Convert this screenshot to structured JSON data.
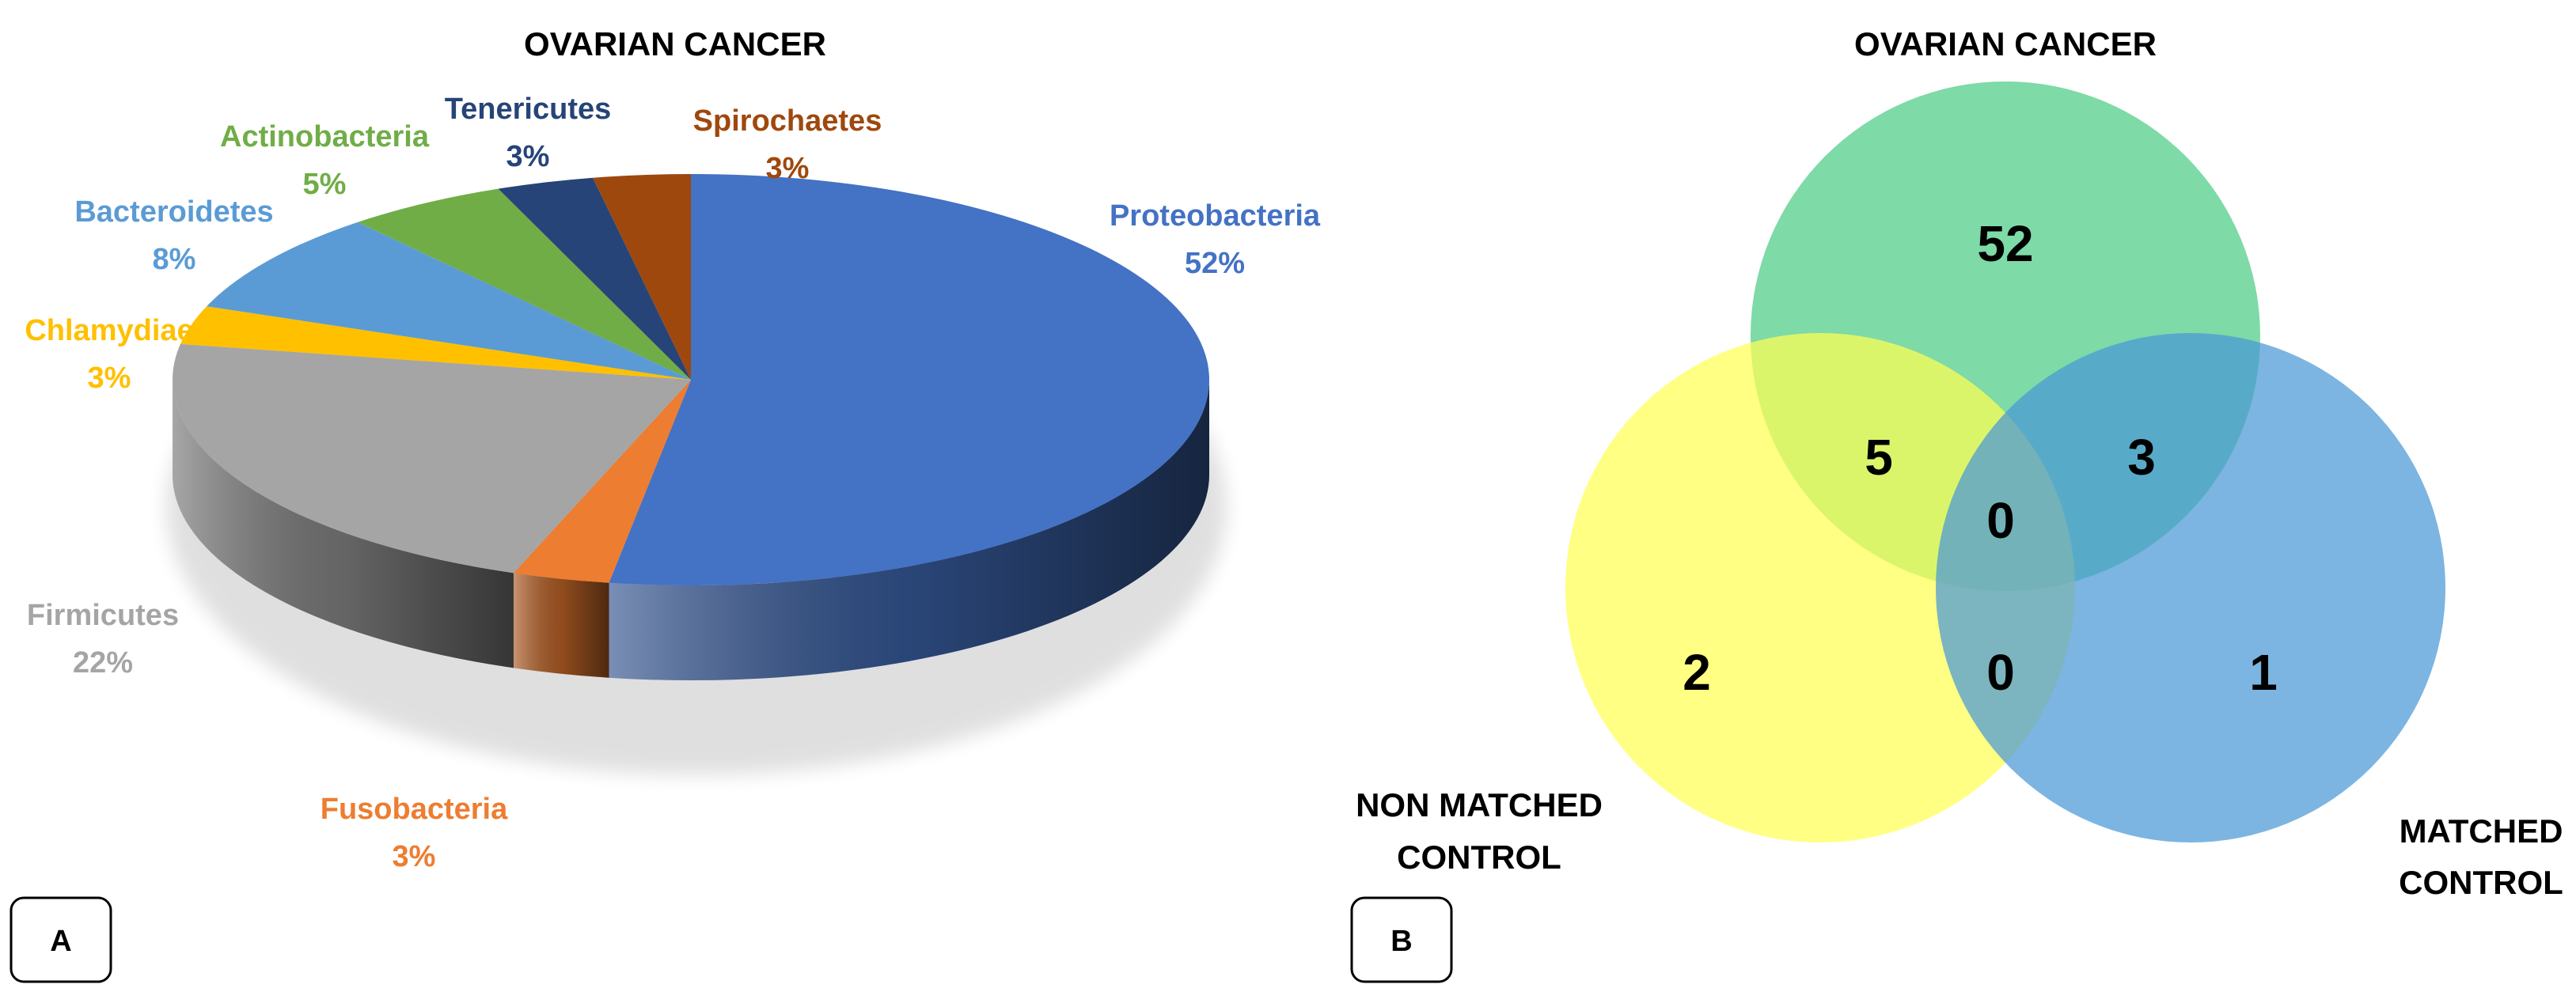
{
  "chart_data": [
    {
      "type": "pie",
      "title": "OVARIAN CANCER",
      "panel_label": "A",
      "slices": [
        {
          "label": "Proteobacteria",
          "pct": "52%",
          "value": 52,
          "color": "#4472c4"
        },
        {
          "label": "Fusobacteria",
          "pct": "3%",
          "value": 3,
          "color": "#ed7d31"
        },
        {
          "label": "Firmicutes",
          "pct": "22%",
          "value": 22,
          "color": "#a5a5a5"
        },
        {
          "label": "Chlamydiae",
          "pct": "3%",
          "value": 3,
          "color": "#ffc000"
        },
        {
          "label": "Bacteroidetes",
          "pct": "8%",
          "value": 8,
          "color": "#5b9bd5"
        },
        {
          "label": "Actinobacteria",
          "pct": "5%",
          "value": 5,
          "color": "#70ad47"
        },
        {
          "label": "Tenericutes",
          "pct": "3%",
          "value": 3,
          "color": "#264478"
        },
        {
          "label": "Spirochaetes",
          "pct": "3%",
          "value": 3,
          "color": "#9e480e"
        }
      ]
    },
    {
      "type": "venn",
      "panel_label": "B",
      "sets": [
        {
          "id": "oc",
          "label": "OVARIAN CANCER",
          "color": "#4ccc85"
        },
        {
          "id": "nmc",
          "label_lines": [
            "NON MATCHED",
            "CONTROL"
          ],
          "color": "#ffff55"
        },
        {
          "id": "mc",
          "label_lines": [
            "MATCHED",
            "CONTROL"
          ],
          "color": "#4a99d6"
        }
      ],
      "regions": [
        {
          "sets": [
            "oc"
          ],
          "value": "52"
        },
        {
          "sets": [
            "oc",
            "nmc"
          ],
          "value": "5"
        },
        {
          "sets": [
            "oc",
            "mc"
          ],
          "value": "3"
        },
        {
          "sets": [
            "oc",
            "nmc",
            "mc"
          ],
          "value": "0"
        },
        {
          "sets": [
            "nmc"
          ],
          "value": "2"
        },
        {
          "sets": [
            "nmc",
            "mc"
          ],
          "value": "0"
        },
        {
          "sets": [
            "mc"
          ],
          "value": "1"
        }
      ]
    }
  ]
}
